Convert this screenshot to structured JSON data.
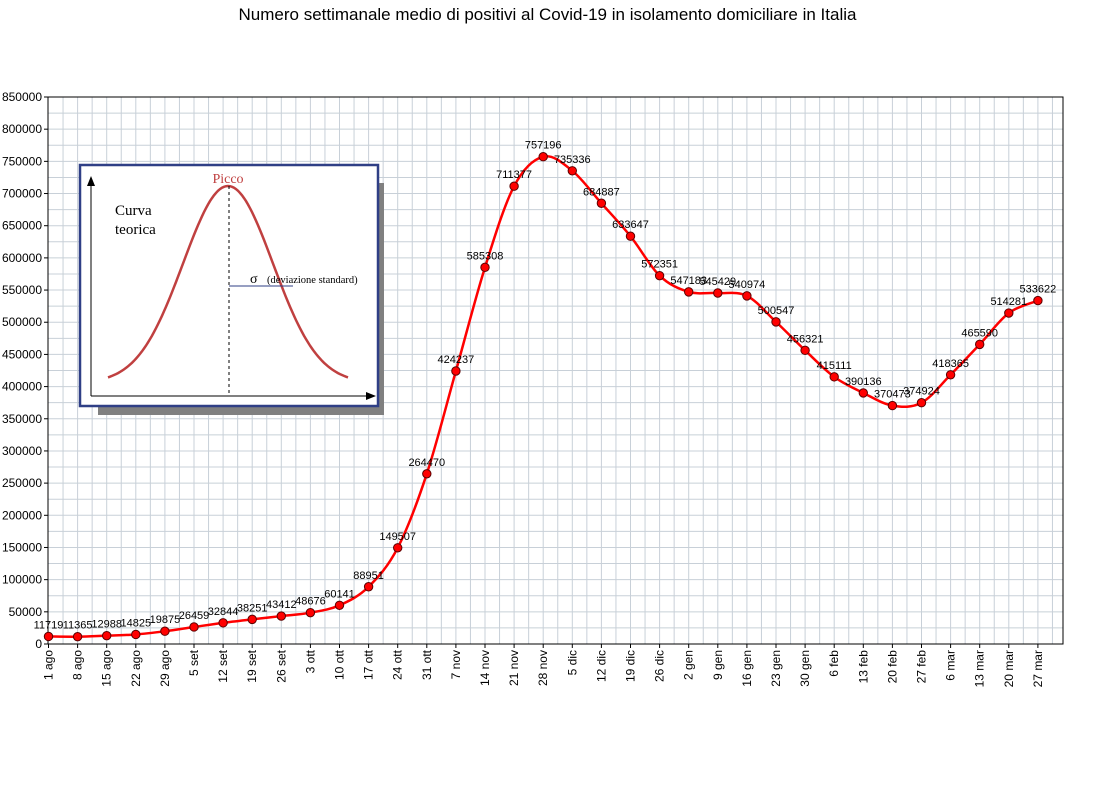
{
  "chart_data": {
    "type": "line",
    "title": "Numero settimanale medio di positivi al Covid-19  in isolamento domiciliare in Italia",
    "xlabel": "",
    "ylabel": "",
    "ylim": [
      0,
      850000
    ],
    "grid": true,
    "y_ticks": [
      0,
      50000,
      100000,
      150000,
      200000,
      250000,
      300000,
      350000,
      400000,
      450000,
      500000,
      550000,
      600000,
      650000,
      700000,
      750000,
      800000,
      850000
    ],
    "y_tick_labels": [
      "0",
      "50000",
      "100000",
      "150000",
      "200000",
      "250000",
      "300000",
      "350000",
      "400000",
      "450000",
      "500000",
      "550000",
      "600000",
      "650000",
      "700000",
      "750000",
      "800000",
      "850000"
    ],
    "categories": [
      "1 ago",
      "8 ago",
      "15 ago",
      "22 ago",
      "29 ago",
      "5 set",
      "12 set",
      "19 set",
      "26 set",
      "3 ott",
      "10 ott",
      "17 ott",
      "24 ott",
      "31 ott",
      "7 nov",
      "14 nov",
      "21 nov",
      "28 nov",
      "5 dic",
      "12 dic",
      "19 dic",
      "26 dic",
      "2 gen",
      "9 gen",
      "16 gen",
      "23 gen",
      "30 gen",
      "6 feb",
      "13 feb",
      "20 feb",
      "27 feb",
      "6 mar",
      "13 mar",
      "20 mar",
      "27 mar"
    ],
    "series": [
      {
        "values": [
          11719,
          11365,
          12988,
          14825,
          19875,
          26459,
          32844,
          38251,
          43412,
          48676,
          60141,
          88951,
          149507,
          264470,
          424237,
          585308,
          711377,
          757196,
          735336,
          684887,
          633647,
          572351,
          547183,
          545429,
          540974,
          500547,
          456321,
          415111,
          390136,
          370473,
          374924,
          418365,
          465590,
          514281,
          533622
        ],
        "labels": [
          "11719",
          "11365",
          "12988",
          "14825",
          "19875",
          "26459",
          "32844",
          "38251",
          "43412",
          "48676",
          "60141",
          "88951",
          "149507",
          "264470",
          "424237",
          "585308",
          "711377",
          "757196",
          "735336",
          "684887",
          "633647",
          "572351",
          "547183",
          "545429",
          "540974",
          "500547",
          "456321",
          "415111",
          "390136",
          "370473",
          "374924",
          "418365",
          "465590",
          "514281",
          "533622"
        ],
        "color": "#ff0000",
        "marker_color": "#ff0000"
      }
    ],
    "inset": {
      "peak_label": "Picco",
      "curve_label_line1": "Curva",
      "curve_label_line2": "teorica",
      "sigma_symbol": "σ",
      "sigma_label": "(deviazione standard)"
    }
  }
}
